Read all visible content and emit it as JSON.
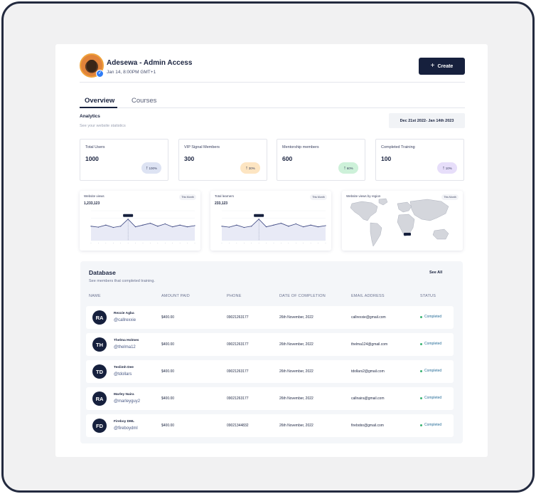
{
  "user": {
    "name": "Adesewa - Admin Access",
    "time": "Jan 14, 8:00PM GMT+1"
  },
  "create_label": "Create",
  "tabs": [
    {
      "label": "Overview",
      "active": true
    },
    {
      "label": "Courses",
      "active": false
    }
  ],
  "analytics": {
    "title": "Analytics",
    "subtitle": "See your website statistics",
    "date_range": "Dec 21st 2022- Jan 14th 2023"
  },
  "stats": [
    {
      "label": "Total Users",
      "value": "1000",
      "badge": "100%",
      "badge_color": "#dde3f3"
    },
    {
      "label": "VIP Signal Members",
      "value": "300",
      "badge": "30%",
      "badge_color": "#fde5c2"
    },
    {
      "label": "Mentorship members",
      "value": "600",
      "badge": "60%",
      "badge_color": "#cdf1d9"
    },
    {
      "label": "Completed Training",
      "value": "100",
      "badge": "10%",
      "badge_color": "#e7defa"
    }
  ],
  "charts": [
    {
      "title": "Website views",
      "value": "1,233,123",
      "pill": "This Month"
    },
    {
      "title": "Total learners",
      "value": "233,123",
      "pill": "This Month"
    },
    {
      "title": "Website views by region",
      "pill": "This Month"
    }
  ],
  "chart_data": [
    {
      "type": "area",
      "title": "Website views",
      "x": [
        1,
        2,
        3,
        4,
        5,
        6,
        7,
        8,
        9,
        10,
        11,
        12,
        13,
        14,
        15
      ],
      "values": [
        48,
        45,
        52,
        44,
        48,
        72,
        46,
        52,
        58,
        48,
        56,
        46,
        52,
        46,
        50
      ],
      "ylim": [
        0,
        100
      ],
      "highlight_index": 5,
      "grid": true
    },
    {
      "type": "area",
      "title": "Total learners",
      "x": [
        1,
        2,
        3,
        4,
        5,
        6,
        7,
        8,
        9,
        10,
        11,
        12,
        13,
        14,
        15
      ],
      "values": [
        48,
        45,
        52,
        44,
        48,
        72,
        46,
        52,
        58,
        48,
        56,
        46,
        52,
        46,
        50
      ],
      "ylim": [
        0,
        100
      ],
      "highlight_index": 5,
      "grid": true
    }
  ],
  "database": {
    "title": "Database",
    "subtitle": "See members that completed training.",
    "see_all": "See All",
    "columns": [
      "NAME",
      "AMOUNT PAID",
      "PHONE",
      "DATE OF COMPLETION",
      "EMAIL ADDRESS",
      "STATUS"
    ],
    "rows": [
      {
        "initials": "RA",
        "name": "Rexxie Agba",
        "handle": "@callrexxie",
        "amount": "$400.00",
        "phone": "09021263177",
        "date": "26th November, 2022",
        "email": "callrexxie@gmail.com",
        "status": "Completed"
      },
      {
        "initials": "TH",
        "name": "Thelma Holmes",
        "handle": "@thelma12",
        "amount": "$400.00",
        "phone": "09021263177",
        "date": "26th November, 2022",
        "email": "thelma124@gmail.com",
        "status": "Completed"
      },
      {
        "initials": "TD",
        "name": "Teslimh Dee",
        "handle": "@tdollars",
        "amount": "$400.00",
        "phone": "09021263177",
        "date": "26th November, 2022",
        "email": "tdollars2@gmail.com",
        "status": "Completed"
      },
      {
        "initials": "RA",
        "name": "Marley Naira",
        "handle": "@marleyguy2",
        "amount": "$400.00",
        "phone": "09021263177",
        "date": "26th November, 2022",
        "email": "callnaira@gmail.com",
        "status": "Completed"
      },
      {
        "initials": "FD",
        "name": "Fireboy DML",
        "handle": "@fireboydml",
        "amount": "$400.00",
        "phone": "09021344832",
        "date": "26th November, 2022",
        "email": "firebobo@gmail.com",
        "status": "Completed"
      }
    ]
  }
}
